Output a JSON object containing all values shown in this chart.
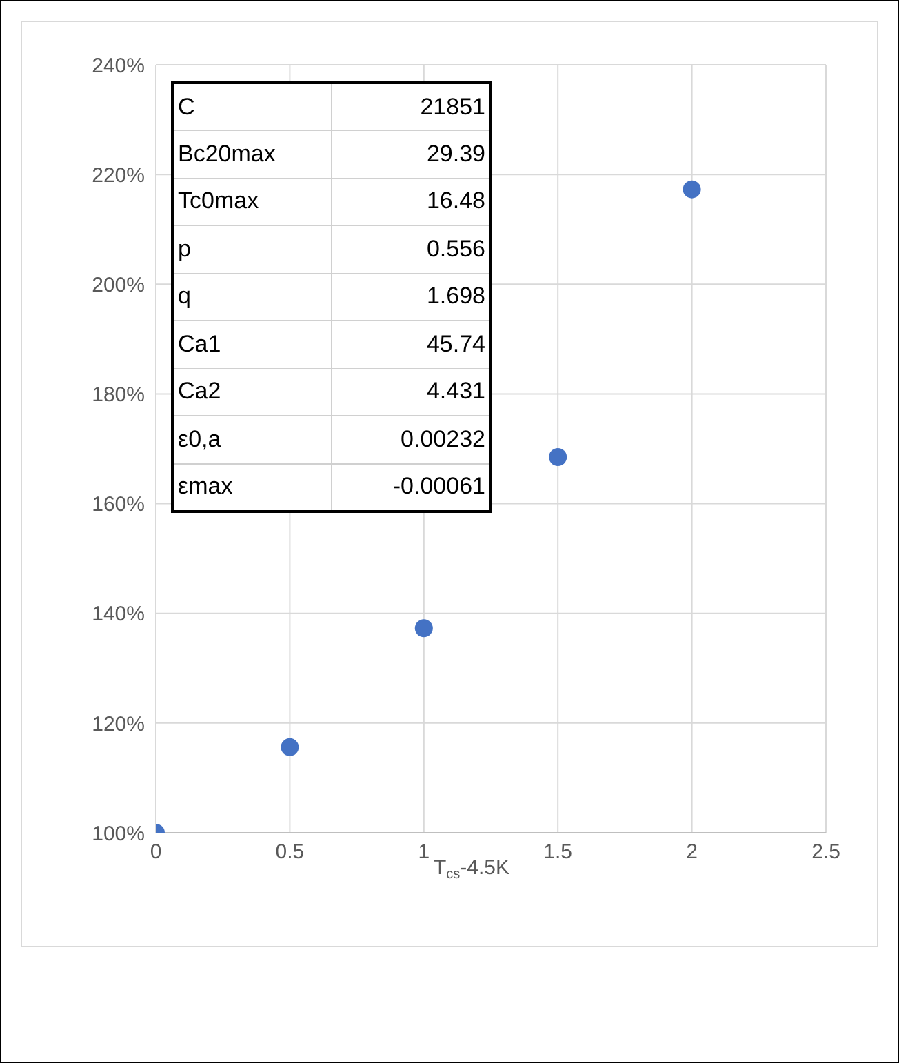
{
  "chart_data": {
    "type": "scatter",
    "xlabel": "T$_{cs}$-4.5K",
    "x": [
      0,
      0.5,
      1,
      1.5,
      2
    ],
    "series": [
      {
        "color": "#4472c4",
        "values": [
          100,
          115.6,
          137.3,
          168.5,
          217.3
        ]
      }
    ],
    "xlim": [
      0,
      2.5
    ],
    "xticks": [
      0,
      0.5,
      1,
      1.5,
      2,
      2.5
    ],
    "ylim": [
      100,
      240
    ],
    "yticks": [
      {
        "value": 100,
        "label": "100%"
      },
      {
        "value": 120,
        "label": "120%"
      },
      {
        "value": 140,
        "label": "140%"
      },
      {
        "value": 160,
        "label": "160%"
      },
      {
        "value": 180,
        "label": "180%"
      },
      {
        "value": 200,
        "label": "200%"
      },
      {
        "value": 220,
        "label": "220%"
      },
      {
        "value": 240,
        "label": "240%"
      }
    ],
    "grid": true,
    "marker": "circle",
    "annotations": [
      "C",
      "21851",
      "Bc20max",
      "29.39",
      "Tc0max",
      "16.48",
      "p",
      "0.556",
      "q",
      "1.698",
      "Ca1",
      "45.74",
      "Ca2",
      "4.431",
      "ε0,a",
      "0.00232",
      "εmax",
      "-0.00061"
    ]
  }
}
